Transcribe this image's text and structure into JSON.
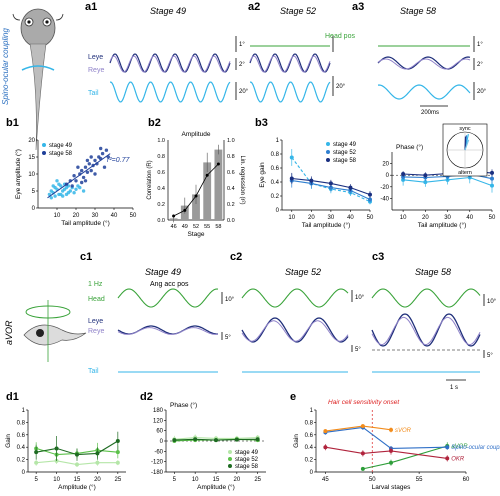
{
  "figure": {
    "panels": {
      "a1": "a1",
      "a2": "a2",
      "a3": "a3",
      "b1": "b1",
      "b2": "b2",
      "b3": "b3",
      "c1": "c1",
      "c2": "c2",
      "c3": "c3",
      "d1": "d1",
      "d2": "d2",
      "e": "e"
    },
    "stages": {
      "s49": "Stage 49",
      "s52": "Stage 52",
      "s58": "Stage 58"
    },
    "row_a": {
      "side_label": "Spino-ocular coupling",
      "trace_labels": {
        "head_pos": "Head pos",
        "leye": "Leye",
        "reye": "Reye",
        "tail": "Tail"
      },
      "scale_labels": {
        "deg_a": "1°",
        "deg_b": "2°",
        "deg_c": "20°",
        "deg_d": "20°",
        "deg_e": "1°",
        "deg_f": "2°",
        "deg_g": "20°",
        "time": "200ms"
      }
    },
    "row_c": {
      "side_label": "aVOR",
      "trace_labels": {
        "head": "Head",
        "leye": "Leye",
        "reye": "Reye",
        "tail": "Tail",
        "ang_acc": "Ang acc pos",
        "freq": "1 Hz"
      },
      "scale_labels": {
        "d10a": "10°",
        "d5a": "5°",
        "d10b": "10°",
        "d5b": "5°",
        "d10c": "10°",
        "d5c": "5°",
        "time": "1 s"
      }
    },
    "row_e": {
      "annotation": "Hair cell sensitivity onset"
    }
  },
  "chart_data": [
    {
      "id": "b1",
      "type": "scatter",
      "xlabel": "Tail amplitude (°)",
      "ylabel": "Eye amplitude (°)",
      "xlim": [
        0,
        50
      ],
      "ylim": [
        0,
        20
      ],
      "xticks": [
        10,
        20,
        30,
        40,
        50
      ],
      "yticks": [
        0,
        5,
        10,
        15,
        20
      ],
      "annotation": "r²=0.77",
      "series": [
        {
          "name": "stage 49",
          "color": "#35b6e8",
          "points": [
            [
              6,
              4
            ],
            [
              7,
              5
            ],
            [
              8,
              4.5
            ],
            [
              9,
              6
            ],
            [
              10,
              5.5
            ],
            [
              11,
              4
            ],
            [
              12,
              6.5
            ],
            [
              13,
              5
            ],
            [
              14,
              5.5
            ],
            [
              15,
              6
            ],
            [
              16,
              4.5
            ],
            [
              17,
              5
            ],
            [
              18,
              6
            ],
            [
              20,
              5.5
            ],
            [
              22,
              6
            ],
            [
              24,
              5
            ],
            [
              9,
              3.5
            ],
            [
              11,
              7
            ],
            [
              13,
              3.5
            ],
            [
              8,
              6.5
            ],
            [
              15,
              4
            ],
            [
              19,
              4.5
            ],
            [
              21,
              6.5
            ],
            [
              12,
              4
            ],
            [
              10,
              8
            ],
            [
              14,
              7
            ],
            [
              7,
              3
            ],
            [
              16,
              6.5
            ]
          ]
        },
        {
          "name": "stage 58",
          "color": "#1f3f99",
          "points": [
            [
              15,
              7
            ],
            [
              17,
              8
            ],
            [
              19,
              9.5
            ],
            [
              20,
              8
            ],
            [
              22,
              10
            ],
            [
              23,
              11
            ],
            [
              24,
              9
            ],
            [
              25,
              12
            ],
            [
              26,
              10.5
            ],
            [
              27,
              13
            ],
            [
              28,
              11
            ],
            [
              29,
              12.5
            ],
            [
              30,
              14
            ],
            [
              31,
              13
            ],
            [
              32,
              15
            ],
            [
              33,
              14.5
            ],
            [
              34,
              16
            ],
            [
              35,
              12
            ],
            [
              36,
              17
            ],
            [
              18,
              6.5
            ],
            [
              21,
              12
            ],
            [
              25,
              8
            ],
            [
              28,
              15
            ],
            [
              30,
              10
            ],
            [
              33,
              17.5
            ],
            [
              26,
              14
            ],
            [
              23,
              7.5
            ],
            [
              37,
              15
            ]
          ]
        }
      ],
      "fit": {
        "x": [
          5,
          38
        ],
        "y": [
          3,
          16
        ]
      },
      "legend": "top-left"
    },
    {
      "id": "b2",
      "type": "bar",
      "title": "Amplitude",
      "xlabel": "Stage",
      "ylabel": "Correlation (R)",
      "y2label": "Lin. regression (r²)",
      "categories": [
        "46",
        "49",
        "52",
        "55",
        "58"
      ],
      "values": [
        0.02,
        0.18,
        0.32,
        0.72,
        0.88
      ],
      "line": [
        0.05,
        0.12,
        0.3,
        0.56,
        0.7
      ],
      "errors": [
        0.05,
        0.1,
        0.12,
        0.12,
        0.06
      ],
      "ylim": [
        0,
        1
      ],
      "yticks": [
        0,
        0.2,
        0.4,
        0.6,
        0.8,
        1.0
      ],
      "y2lim": [
        0,
        1
      ],
      "y2ticks": [
        0,
        0.2,
        0.4,
        0.6,
        0.8,
        1.0
      ]
    },
    {
      "id": "b3_gain",
      "type": "line",
      "xlabel": "Tail amplitude (°)",
      "ylabel": "Eye gain",
      "x": [
        10,
        20,
        30,
        40,
        50
      ],
      "xlim": [
        5,
        50
      ],
      "ylim": [
        0,
        1
      ],
      "yticks": [
        0,
        0.2,
        0.4,
        0.6,
        0.8,
        1.0
      ],
      "series": [
        {
          "name": "stage 49",
          "color": "#35b6e8",
          "values": [
            0.75,
            0.38,
            0.3,
            0.25,
            0.12
          ],
          "err": [
            0.12,
            0.08,
            0.06,
            0.05,
            0.04
          ]
        },
        {
          "name": "stage 52",
          "color": "#2f7fd0",
          "values": [
            0.42,
            0.38,
            0.32,
            0.28,
            0.15
          ],
          "err": [
            0.1,
            0.07,
            0.06,
            0.05,
            0.04
          ]
        },
        {
          "name": "stage 58",
          "color": "#1a2f80",
          "values": [
            0.45,
            0.42,
            0.38,
            0.32,
            0.22
          ],
          "err": [
            0.08,
            0.06,
            0.05,
            0.05,
            0.05
          ]
        }
      ],
      "legend": "top-right"
    },
    {
      "id": "b3_phase",
      "type": "line",
      "title": "Phase (°)",
      "xlabel": "Tail amplitude (°)",
      "x": [
        10,
        20,
        30,
        40,
        50
      ],
      "xlim": [
        5,
        50
      ],
      "ylim": [
        -60,
        40
      ],
      "yticks": [
        -40,
        -20,
        0,
        20
      ],
      "series": [
        {
          "name": "stage 49",
          "color": "#35b6e8",
          "values": [
            -8,
            -12,
            -8,
            -4,
            -18
          ],
          "err": [
            10,
            8,
            8,
            10,
            12
          ]
        },
        {
          "name": "stage 52",
          "color": "#2f7fd0",
          "values": [
            -3,
            -4,
            -2,
            2,
            -6
          ],
          "err": [
            6,
            6,
            6,
            8,
            8
          ]
        },
        {
          "name": "stage 58",
          "color": "#1a2f80",
          "values": [
            2,
            0,
            3,
            6,
            4
          ],
          "err": [
            5,
            5,
            5,
            6,
            6
          ]
        }
      ],
      "inset": {
        "type": "polar",
        "labels": {
          "top": "sync",
          "bottom": "altern"
        },
        "vectors": [
          {
            "color": "#35b6e8",
            "angle": 78,
            "length": 0.9
          },
          {
            "color": "#2f7fd0",
            "angle": 84,
            "length": 0.82
          },
          {
            "color": "#1a2f80",
            "angle": 88,
            "length": 0.75
          },
          {
            "color": "#78c7e8",
            "angle": 70,
            "length": 0.6
          }
        ]
      }
    },
    {
      "id": "d1",
      "type": "line",
      "ylabel": "Gain",
      "xlabel": "Amplitude (°)",
      "x": [
        5,
        10,
        15,
        20,
        25
      ],
      "xlim": [
        3,
        27
      ],
      "ylim": [
        0,
        1.0
      ],
      "yticks": [
        0,
        0.2,
        0.4,
        0.6,
        0.8,
        1.0
      ],
      "series": [
        {
          "name": "stage 49",
          "color": "#b5e6a8",
          "values": [
            0.15,
            0.18,
            0.12,
            0.15,
            0.15
          ],
          "err": [
            0.05,
            0.05,
            0.04,
            0.05,
            0.04
          ]
        },
        {
          "name": "stage 52",
          "color": "#5cc24a",
          "values": [
            0.38,
            0.28,
            0.3,
            0.35,
            0.32
          ],
          "err": [
            0.1,
            0.1,
            0.08,
            0.12,
            0.1
          ]
        },
        {
          "name": "stage 58",
          "color": "#1e6b22",
          "values": [
            0.32,
            0.38,
            0.28,
            0.3,
            0.5
          ],
          "err": [
            0.12,
            0.2,
            0.1,
            0.1,
            0.15
          ]
        }
      ]
    },
    {
      "id": "d2",
      "type": "line",
      "title": "Phase (°)",
      "xlabel": "Amplitude (°)",
      "x": [
        5,
        10,
        15,
        20,
        25
      ],
      "xlim": [
        3,
        27
      ],
      "ylim": [
        -180,
        180
      ],
      "yticks": [
        -180,
        -120,
        -60,
        0,
        60,
        120,
        180
      ],
      "series": [
        {
          "name": "stage 49",
          "color": "#b5e6a8",
          "values": [
            10,
            20,
            15,
            15,
            20
          ],
          "err": [
            20,
            18,
            15,
            15,
            15
          ]
        },
        {
          "name": "stage 52",
          "color": "#5cc24a",
          "values": [
            0,
            5,
            5,
            10,
            5
          ],
          "err": [
            10,
            10,
            10,
            10,
            10
          ]
        },
        {
          "name": "stage 58",
          "color": "#1e6b22",
          "values": [
            5,
            10,
            5,
            8,
            10
          ],
          "err": [
            10,
            10,
            10,
            10,
            10
          ]
        }
      ],
      "legend": "bottom-right"
    },
    {
      "id": "e",
      "type": "line",
      "xlabel": "Larval stages",
      "ylabel": "Gain",
      "xlim": [
        44,
        60
      ],
      "ylim": [
        0,
        1.0
      ],
      "xticks": [
        45,
        50,
        55,
        60
      ],
      "yticks": [
        0,
        0.2,
        0.4,
        0.6,
        0.8,
        1.0
      ],
      "series": [
        {
          "name": "aVOR",
          "color": "#2e9e3a",
          "x": [
            49,
            52,
            58
          ],
          "values": [
            0.05,
            0.15,
            0.42
          ],
          "err": [
            0.03,
            0.05,
            0.06
          ]
        },
        {
          "name": "Spino-ocular coupling",
          "color": "#2f6fc7",
          "x": [
            45,
            49,
            52,
            58
          ],
          "values": [
            0.64,
            0.72,
            0.38,
            0.4
          ],
          "err": [
            0.04,
            0.04,
            0.04,
            0.04
          ]
        },
        {
          "name": "sVOR",
          "color": "#f28c1c",
          "x": [
            45,
            49,
            52
          ],
          "values": [
            0.66,
            0.74,
            0.68
          ],
          "err": [
            0.03,
            0.03,
            0.04
          ]
        },
        {
          "name": "OKR",
          "color": "#b0233c",
          "x": [
            45,
            49,
            52,
            58
          ],
          "values": [
            0.4,
            0.3,
            0.34,
            0.22
          ],
          "err": [
            0.05,
            0.05,
            0.06,
            0.05
          ]
        }
      ],
      "vline": 50
    }
  ]
}
